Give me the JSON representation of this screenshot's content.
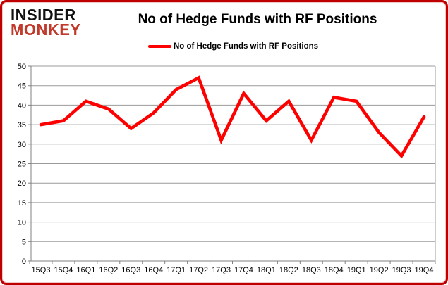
{
  "logo": {
    "line1": "INSIDER",
    "line2": "MONKEY"
  },
  "header": {
    "title": "No of Hedge Funds with RF Positions"
  },
  "legend": {
    "label": "No of Hedge Funds with RF Positions"
  },
  "colors": {
    "line": "#FF0000",
    "grid": "#9b9b9b",
    "axis": "#808080",
    "frame_border": "#c00000",
    "logo_top": "#111111",
    "logo_bottom": "#c0392b",
    "text": "#000000"
  },
  "chart_data": {
    "type": "line",
    "title": "No of Hedge Funds with RF Positions",
    "xlabel": "",
    "ylabel": "",
    "categories": [
      "15Q3",
      "15Q4",
      "16Q1",
      "16Q2",
      "16Q3",
      "16Q4",
      "17Q1",
      "17Q2",
      "17Q3",
      "17Q4",
      "18Q1",
      "18Q2",
      "18Q3",
      "18Q4",
      "19Q1",
      "19Q2",
      "19Q3",
      "19Q4"
    ],
    "series": [
      {
        "name": "No of Hedge Funds with RF Positions",
        "color": "#FF0000",
        "values": [
          35,
          36,
          41,
          39,
          34,
          38,
          44,
          47,
          31,
          43,
          36,
          41,
          31,
          42,
          41,
          33,
          27,
          37
        ]
      }
    ],
    "ylim": [
      0,
      50
    ],
    "ytick_step": 5,
    "grid": "horizontal",
    "legend_position": "top"
  }
}
